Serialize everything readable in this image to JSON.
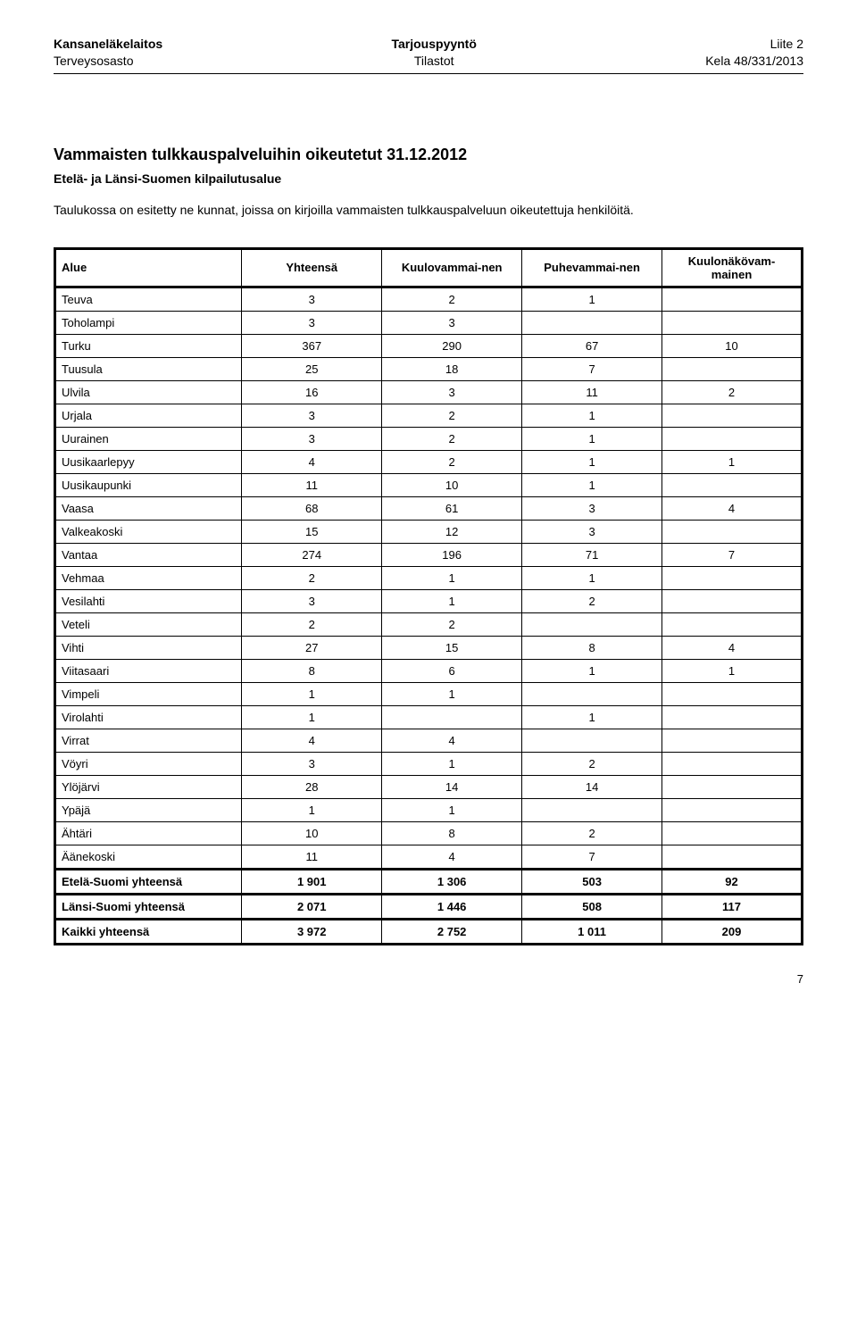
{
  "header": {
    "left1": "Kansaneläkelaitos",
    "left2": "Terveysosasto",
    "center1": "Tarjouspyyntö",
    "center2": "Tilastot",
    "right1": "Liite 2",
    "right2": "Kela 48/331/2013"
  },
  "title": "Vammaisten tulkkauspalveluihin oikeutetut 31.12.2012",
  "subtitle": "Etelä- ja Länsi-Suomen kilpailutusalue",
  "description": "Taulukossa on esitetty ne kunnat, joissa on kirjoilla vammaisten tulkkauspalveluun oikeutettuja henkilöitä.",
  "columns": [
    "Alue",
    "Yhteensä",
    "Kuulovammai-nen",
    "Puhevammai-nen",
    "Kuulonäkövam-mainen"
  ],
  "rows": [
    {
      "label": "Teuva",
      "vals": [
        "3",
        "2",
        "1",
        ""
      ]
    },
    {
      "label": "Toholampi",
      "vals": [
        "3",
        "3",
        "",
        ""
      ]
    },
    {
      "label": "Turku",
      "vals": [
        "367",
        "290",
        "67",
        "10"
      ]
    },
    {
      "label": "Tuusula",
      "vals": [
        "25",
        "18",
        "7",
        ""
      ]
    },
    {
      "label": "Ulvila",
      "vals": [
        "16",
        "3",
        "11",
        "2"
      ]
    },
    {
      "label": "Urjala",
      "vals": [
        "3",
        "2",
        "1",
        ""
      ]
    },
    {
      "label": "Uurainen",
      "vals": [
        "3",
        "2",
        "1",
        ""
      ]
    },
    {
      "label": "Uusikaarlepyy",
      "vals": [
        "4",
        "2",
        "1",
        "1"
      ]
    },
    {
      "label": "Uusikaupunki",
      "vals": [
        "11",
        "10",
        "1",
        ""
      ]
    },
    {
      "label": "Vaasa",
      "vals": [
        "68",
        "61",
        "3",
        "4"
      ]
    },
    {
      "label": "Valkeakoski",
      "vals": [
        "15",
        "12",
        "3",
        ""
      ]
    },
    {
      "label": "Vantaa",
      "vals": [
        "274",
        "196",
        "71",
        "7"
      ]
    },
    {
      "label": "Vehmaa",
      "vals": [
        "2",
        "1",
        "1",
        ""
      ]
    },
    {
      "label": "Vesilahti",
      "vals": [
        "3",
        "1",
        "2",
        ""
      ]
    },
    {
      "label": "Veteli",
      "vals": [
        "2",
        "2",
        "",
        ""
      ]
    },
    {
      "label": "Vihti",
      "vals": [
        "27",
        "15",
        "8",
        "4"
      ]
    },
    {
      "label": "Viitasaari",
      "vals": [
        "8",
        "6",
        "1",
        "1"
      ]
    },
    {
      "label": "Vimpeli",
      "vals": [
        "1",
        "1",
        "",
        ""
      ]
    },
    {
      "label": "Virolahti",
      "vals": [
        "1",
        "",
        "1",
        ""
      ]
    },
    {
      "label": "Virrat",
      "vals": [
        "4",
        "4",
        "",
        ""
      ]
    },
    {
      "label": "Vöyri",
      "vals": [
        "3",
        "1",
        "2",
        ""
      ]
    },
    {
      "label": "Ylöjärvi",
      "vals": [
        "28",
        "14",
        "14",
        ""
      ]
    },
    {
      "label": "Ypäjä",
      "vals": [
        "1",
        "1",
        "",
        ""
      ]
    },
    {
      "label": "Ähtäri",
      "vals": [
        "10",
        "8",
        "2",
        ""
      ]
    },
    {
      "label": "Äänekoski",
      "vals": [
        "11",
        "4",
        "7",
        ""
      ]
    }
  ],
  "totals": [
    {
      "label": "Etelä-Suomi yhteensä",
      "vals": [
        "1 901",
        "1 306",
        "503",
        "92"
      ],
      "class": "total"
    },
    {
      "label": "Länsi-Suomi yhteensä",
      "vals": [
        "2 071",
        "1 446",
        "508",
        "117"
      ],
      "class": "total"
    },
    {
      "label": "Kaikki yhteensä",
      "vals": [
        "3 972",
        "2 752",
        "1 011",
        "209"
      ],
      "class": "grand"
    }
  ],
  "pagenum": "7"
}
